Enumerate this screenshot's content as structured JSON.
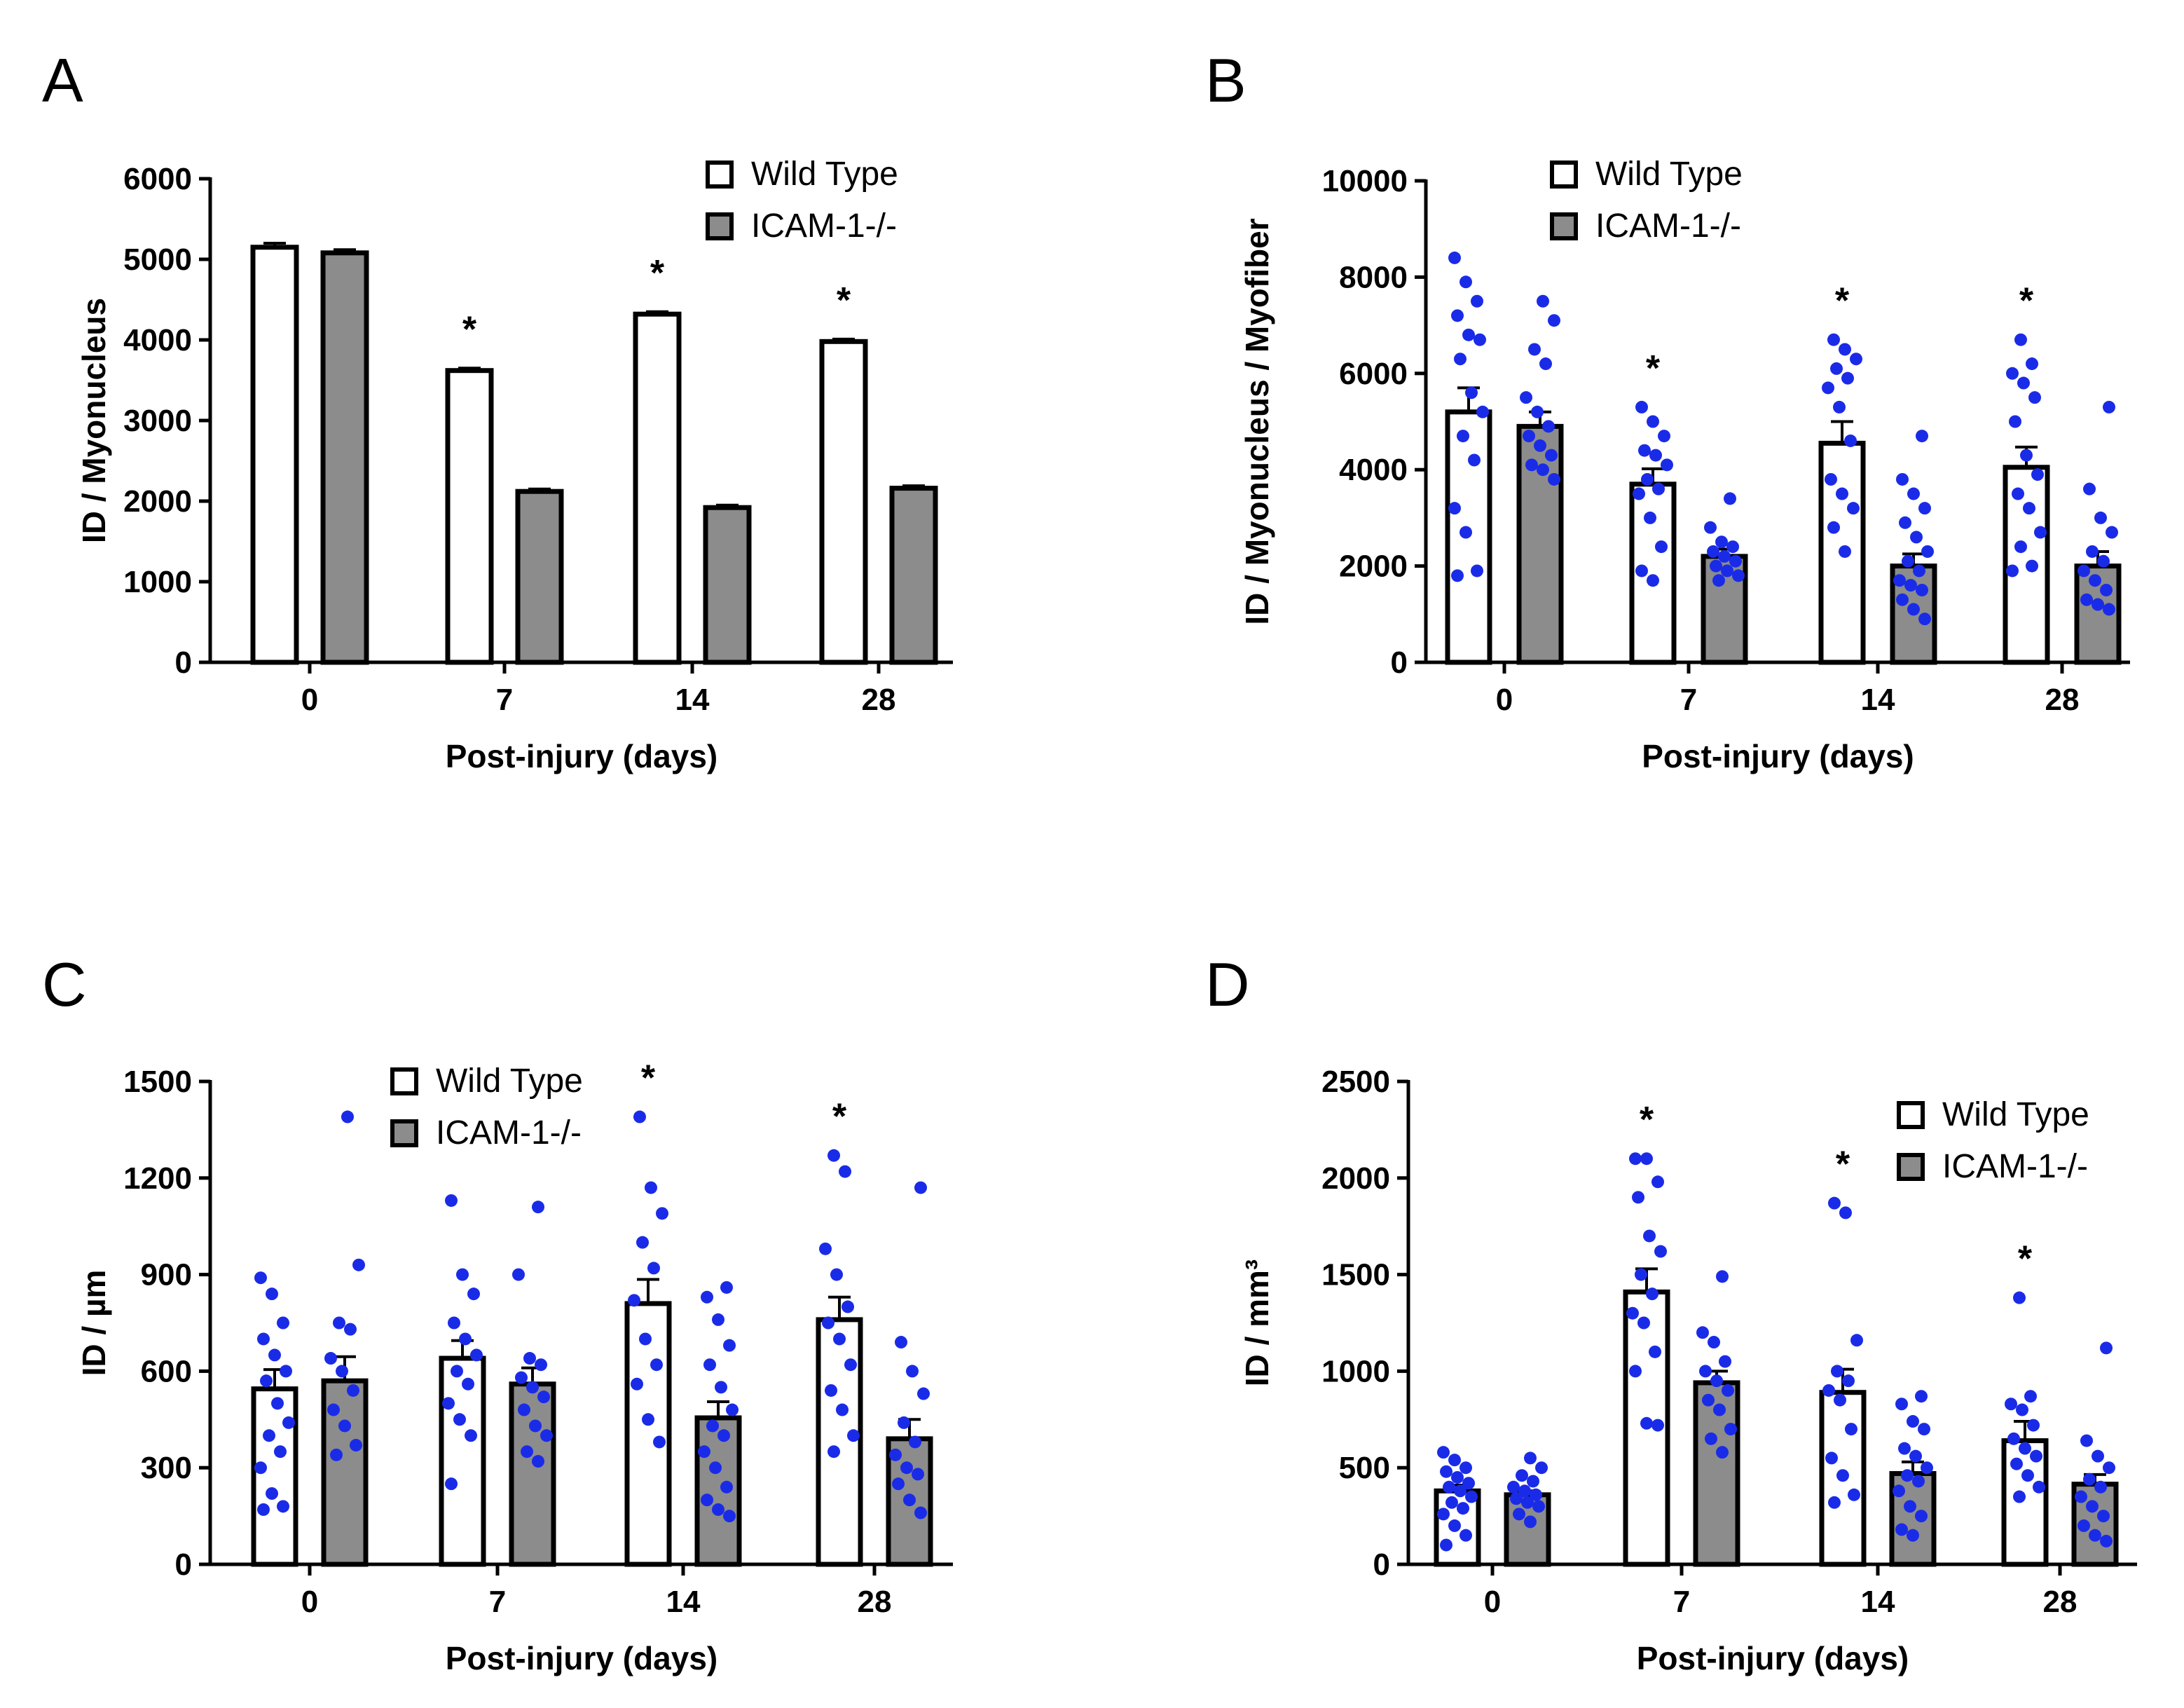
{
  "colors": {
    "wild_type": "#ffffff",
    "icam": "#8c8c8c",
    "dots": "#1a2be8",
    "axis": "#000000"
  },
  "chart_data": [
    {
      "panel": "A",
      "type": "bar",
      "ylabel": "ID / Myonucleus",
      "xlabel": "Post-injury (days)",
      "categories": [
        "0",
        "7",
        "14",
        "28"
      ],
      "ylim": [
        0,
        6000
      ],
      "yticks": [
        0,
        1000,
        2000,
        3000,
        4000,
        5000,
        6000
      ],
      "ytick_labels": [
        "0",
        "1000",
        "2000",
        "3000",
        "4000",
        "5000",
        "6000"
      ],
      "legend": {
        "position": "top-right",
        "entries": [
          "Wild Type",
          "ICAM-1-/-"
        ]
      },
      "significance": [
        "",
        "*",
        "*",
        "*"
      ],
      "series": [
        {
          "name": "Wild Type",
          "values": [
            5150,
            3620,
            4320,
            3980
          ],
          "sem": [
            50,
            30,
            30,
            30
          ],
          "points": [
            [],
            [],
            [],
            []
          ]
        },
        {
          "name": "ICAM-1-/-",
          "values": [
            5080,
            2120,
            1920,
            2160
          ],
          "sem": [
            40,
            30,
            30,
            30
          ],
          "points": [
            [],
            [],
            [],
            []
          ]
        }
      ]
    },
    {
      "panel": "B",
      "type": "bar",
      "ylabel": "ID /  Myonucleus / Myofiber",
      "xlabel": "Post-injury (days)",
      "categories": [
        "0",
        "7",
        "14",
        "28"
      ],
      "ylim": [
        0,
        10000
      ],
      "yticks": [
        0,
        2000,
        4000,
        6000,
        8000,
        10000
      ],
      "ytick_labels": [
        "0",
        "2000",
        "4000",
        "6000",
        "8000",
        "10000"
      ],
      "legend": {
        "position": "top-left",
        "entries": [
          "Wild Type",
          "ICAM-1-/-"
        ]
      },
      "significance": [
        "",
        "*",
        "*",
        "*"
      ],
      "series": [
        {
          "name": "Wild Type",
          "values": [
            5200,
            3700,
            4550,
            4050
          ],
          "sem": [
            500,
            320,
            450,
            420
          ],
          "points": [
            [
              8400,
              7900,
              7500,
              7200,
              6800,
              6700,
              6300,
              5600,
              5200,
              4700,
              4200,
              3200,
              2700,
              1900,
              1800
            ],
            [
              5300,
              5000,
              4700,
              4400,
              4300,
              4100,
              3800,
              3600,
              3500,
              3000,
              2400,
              1900,
              1700
            ],
            [
              6700,
              6500,
              6300,
              6100,
              5900,
              5700,
              5300,
              4600,
              3800,
              3500,
              3200,
              2800,
              2300
            ],
            [
              6700,
              6200,
              6000,
              5800,
              5500,
              5000,
              4300,
              3900,
              3500,
              3200,
              2700,
              2400,
              2000,
              1900
            ]
          ]
        },
        {
          "name": "ICAM-1-/-",
          "values": [
            4900,
            2200,
            2000,
            2000
          ],
          "sem": [
            300,
            150,
            250,
            300
          ],
          "points": [
            [
              7500,
              7100,
              6500,
              6200,
              5500,
              5200,
              4900,
              4700,
              4500,
              4300,
              4100,
              4000,
              3800
            ],
            [
              3400,
              2800,
              2500,
              2400,
              2300,
              2200,
              2100,
              2000,
              1900,
              1800,
              1700
            ],
            [
              4700,
              3800,
              3500,
              3200,
              2900,
              2600,
              2300,
              2100,
              1900,
              1700,
              1600,
              1500,
              1300,
              1100,
              900
            ],
            [
              5300,
              3600,
              3000,
              2700,
              2300,
              2100,
              1900,
              1700,
              1500,
              1300,
              1200,
              1100
            ]
          ]
        }
      ]
    },
    {
      "panel": "C",
      "type": "bar",
      "ylabel": "ID / µm",
      "xlabel": "Post-injury (days)",
      "categories": [
        "0",
        "7",
        "14",
        "28"
      ],
      "ylim": [
        0,
        1500
      ],
      "yticks": [
        0,
        300,
        600,
        900,
        1200,
        1500
      ],
      "ytick_labels": [
        "0",
        "300",
        "600",
        "900",
        "1200",
        "1500"
      ],
      "legend": {
        "position": "top-center",
        "entries": [
          "Wild Type",
          "ICAM-1-/-"
        ]
      },
      "significance": [
        "",
        "",
        "*",
        "*"
      ],
      "series": [
        {
          "name": "Wild Type",
          "values": [
            545,
            640,
            810,
            760
          ],
          "sem": [
            60,
            55,
            75,
            70
          ],
          "points": [
            [
              890,
              840,
              750,
              700,
              650,
              600,
              570,
              500,
              440,
              400,
              350,
              300,
              220,
              180,
              170
            ],
            [
              1130,
              900,
              840,
              750,
              700,
              650,
              600,
              560,
              500,
              450,
              400,
              250
            ],
            [
              1390,
              1170,
              1090,
              1000,
              920,
              820,
              700,
              620,
              560,
              450,
              380
            ],
            [
              1270,
              1220,
              980,
              900,
              800,
              750,
              700,
              620,
              540,
              480,
              400,
              350
            ]
          ]
        },
        {
          "name": "ICAM-1-/-",
          "values": [
            570,
            560,
            455,
            390
          ],
          "sem": [
            75,
            50,
            50,
            60
          ],
          "points": [
            [
              1390,
              930,
              750,
              730,
              640,
              600,
              540,
              480,
              430,
              370,
              340
            ],
            [
              1110,
              900,
              640,
              620,
              580,
              550,
              520,
              480,
              430,
              400,
              350,
              320
            ],
            [
              860,
              830,
              760,
              680,
              620,
              550,
              480,
              430,
              400,
              350,
              300,
              240,
              200,
              170,
              150
            ],
            [
              1170,
              690,
              600,
              530,
              440,
              380,
              340,
              300,
              280,
              250,
              200,
              160
            ]
          ]
        }
      ]
    },
    {
      "panel": "D",
      "type": "bar",
      "ylabel": "ID / mm³",
      "xlabel": "Post-injury (days)",
      "categories": [
        "0",
        "7",
        "14",
        "28"
      ],
      "ylim": [
        0,
        2500
      ],
      "yticks": [
        0,
        500,
        1000,
        1500,
        2000,
        2500
      ],
      "ytick_labels": [
        "0",
        "500",
        "1000",
        "1500",
        "2000",
        "2500"
      ],
      "legend": {
        "position": "top-right",
        "entries": [
          "Wild Type",
          "ICAM-1-/-"
        ]
      },
      "significance": [
        "",
        "*",
        "*",
        "*"
      ],
      "series": [
        {
          "name": "Wild Type",
          "values": [
            380,
            1410,
            890,
            640
          ],
          "sem": [
            30,
            120,
            120,
            100
          ],
          "points": [
            [
              580,
              540,
              500,
              480,
              450,
              420,
              400,
              380,
              350,
              320,
              290,
              260,
              200,
              150,
              100
            ],
            [
              2100,
              2100,
              1980,
              1900,
              1700,
              1620,
              1500,
              1400,
              1300,
              1250,
              1100,
              1000,
              730,
              720
            ],
            [
              1870,
              1820,
              1160,
              1000,
              950,
              900,
              850,
              700,
              550,
              460,
              360,
              320
            ],
            [
              1380,
              870,
              830,
              800,
              720,
              650,
              600,
              560,
              520,
              460,
              400,
              350
            ]
          ]
        },
        {
          "name": "ICAM-1-/-",
          "values": [
            360,
            940,
            470,
            415
          ],
          "sem": [
            20,
            60,
            60,
            50
          ],
          "points": [
            [
              550,
              500,
              460,
              430,
              400,
              380,
              360,
              340,
              320,
              300,
              260,
              220
            ],
            [
              1490,
              1200,
              1150,
              1050,
              1000,
              950,
              900,
              850,
              800,
              700,
              650,
              580
            ],
            [
              870,
              830,
              740,
              700,
              600,
              560,
              500,
              460,
              430,
              380,
              300,
              250,
              180,
              150
            ],
            [
              1120,
              640,
              560,
              500,
              440,
              400,
              350,
              300,
              250,
              200,
              150,
              120
            ]
          ]
        }
      ]
    }
  ]
}
